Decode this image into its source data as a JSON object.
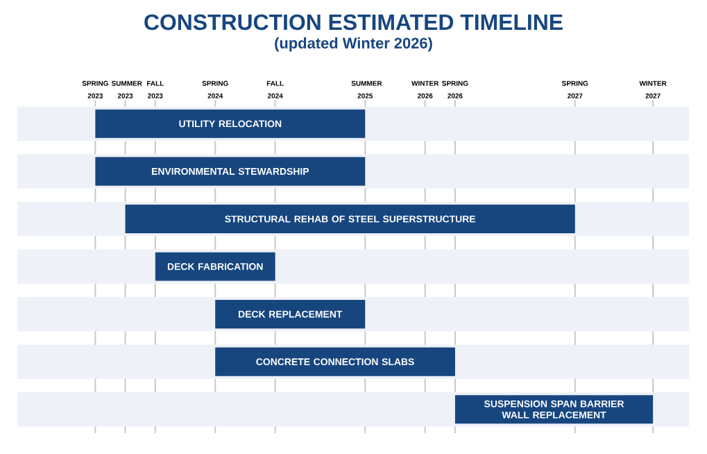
{
  "chart_data": {
    "type": "bar",
    "orientation": "horizontal",
    "title": "CONSTRUCTION ESTIMATED TIMELINE",
    "subtitle": "(updated Winter 2026)",
    "categories": [
      "UTILITY RELOCATION",
      "ENVIRONMENTAL STEWARDSHIP",
      "STRUCTURAL REHAB OF STEEL SUPERSTRUCTURE",
      "DECK FABRICATION",
      "DECK REPLACEMENT",
      "CONCRETE CONNECTION SLABS",
      "SUSPENSION SPAN BARRIER WALL REPLACEMENT"
    ],
    "base": [
      2023.25,
      2023.25,
      2023.5,
      2023.75,
      2024.25,
      2024.25,
      2026.25
    ],
    "values": [
      2.25,
      2.25,
      3.75,
      1.0,
      1.25,
      2.0,
      1.65
    ],
    "color": "#17467f",
    "xlim": [
      2022.6,
      2028.2
    ],
    "ref_lines": [
      {
        "axis": "x",
        "value": 2023.25,
        "label": "SPRING 2023",
        "color": "#c8c8c8"
      },
      {
        "axis": "x",
        "value": 2023.5,
        "label": "SUMMER 2023",
        "color": "#c8c8c8"
      },
      {
        "axis": "x",
        "value": 2023.75,
        "label": "FALL 2023",
        "color": "#c8c8c8"
      },
      {
        "axis": "x",
        "value": 2024.25,
        "label": "SPRING 2024",
        "color": "#c8c8c8"
      },
      {
        "axis": "x",
        "value": 2024.75,
        "label": "FALL 2024",
        "color": "#c8c8c8"
      },
      {
        "axis": "x",
        "value": 2025.5,
        "label": "SUMMER 2025",
        "color": "#c8c8c8"
      },
      {
        "axis": "x",
        "value": 2026.0,
        "label": "WINTER 2026",
        "color": "#c8c8c8"
      },
      {
        "axis": "x",
        "value": 2026.25,
        "label": "SPRING 2026",
        "color": "#c8c8c8"
      },
      {
        "axis": "x",
        "value": 2027.25,
        "label": "SPRING 2027",
        "color": "#c8c8c8"
      },
      {
        "axis": "x",
        "value": 2027.9,
        "label": "WINTER 2027",
        "color": "#c8c8c8"
      }
    ],
    "bands": [
      {
        "axis": "y",
        "from": "UTILITY RELOCATION",
        "to": "UTILITY RELOCATION",
        "color": "#eef1f7"
      },
      {
        "axis": "y",
        "from": "ENVIRONMENTAL STEWARDSHIP",
        "to": "ENVIRONMENTAL STEWARDSHIP",
        "color": "#eef1f7"
      },
      {
        "axis": "y",
        "from": "STRUCTURAL REHAB OF STEEL SUPERSTRUCTURE",
        "to": "STRUCTURAL REHAB OF STEEL SUPERSTRUCTURE",
        "color": "#eef1f7"
      },
      {
        "axis": "y",
        "from": "DECK FABRICATION",
        "to": "DECK FABRICATION",
        "color": "#eef1f7"
      },
      {
        "axis": "y",
        "from": "DECK REPLACEMENT",
        "to": "DECK REPLACEMENT",
        "color": "#eef1f7"
      },
      {
        "axis": "y",
        "from": "CONCRETE CONNECTION SLABS",
        "to": "CONCRETE CONNECTION SLABS",
        "color": "#eef1f7"
      },
      {
        "axis": "y",
        "from": "SUSPENSION SPAN BARRIER WALL REPLACEMENT",
        "to": "SUSPENSION SPAN BARRIER WALL REPLACEMENT",
        "color": "#eef1f7"
      }
    ]
  }
}
